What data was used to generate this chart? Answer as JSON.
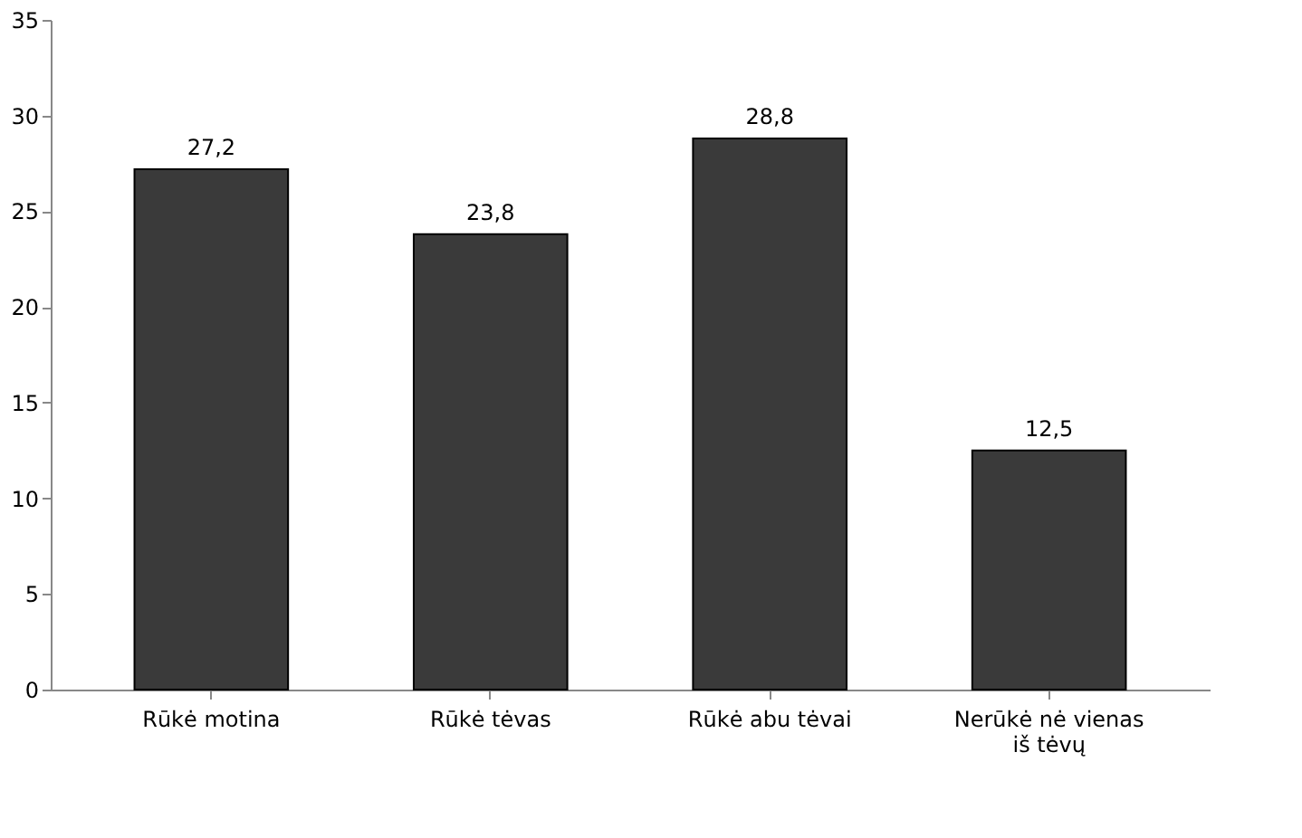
{
  "chart_data": {
    "type": "bar",
    "categories": [
      "Rūkė motina",
      "Rūkė tėvas",
      "Rūkė abu tėvai",
      "Nerūkė nė vienas iš tėvų"
    ],
    "values": [
      27.2,
      23.8,
      28.8,
      12.5
    ],
    "value_labels": [
      "27,2",
      "23,8",
      "28,8",
      "12,5"
    ],
    "color": "#3a3a3a",
    "ylim": [
      0,
      35
    ],
    "yticks": [
      0,
      5,
      10,
      15,
      20,
      25,
      30,
      35
    ],
    "grid": false
  }
}
